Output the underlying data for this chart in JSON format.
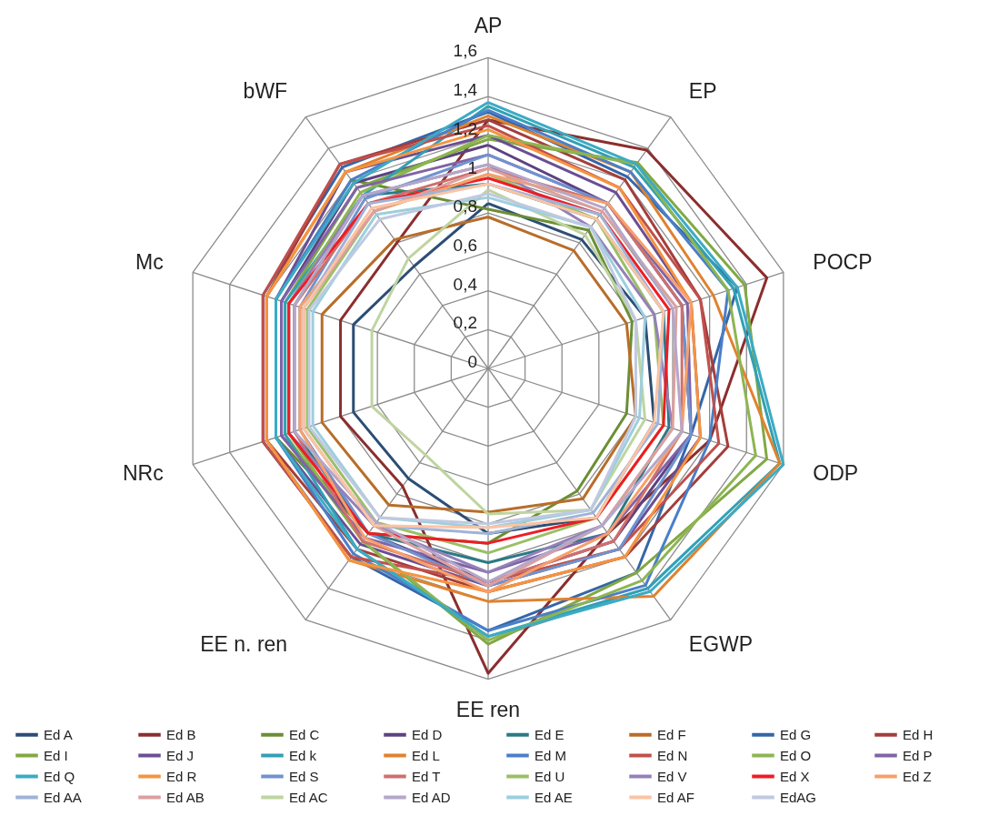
{
  "chart_data": {
    "type": "radar",
    "categories": [
      "AP",
      "EP",
      "POCP",
      "ODP",
      "EGWP",
      "EE ren",
      "EE n. ren",
      "NRc",
      "Mc",
      "bWF"
    ],
    "ylim": [
      0,
      1.6
    ],
    "yticks": [
      0,
      {
        "value": 0.2,
        "label": "0,2"
      },
      {
        "value": 0.4,
        "label": "0,4"
      },
      {
        "value": 0.6,
        "label": "0,6"
      },
      {
        "value": 0.8,
        "label": "0,8"
      },
      1,
      {
        "value": 1.2,
        "label": "1,2"
      },
      {
        "value": 1.4,
        "label": "1,4"
      },
      {
        "value": 1.6,
        "label": "1,6"
      }
    ],
    "grid": true,
    "legend": "bottom",
    "series": [
      {
        "name": "Ed A",
        "color": "#2c4d75",
        "values": [
          0.85,
          0.82,
          0.85,
          0.9,
          0.95,
          0.85,
          0.7,
          0.73,
          0.73,
          0.65
        ]
      },
      {
        "name": "Ed B",
        "color": "#8b2e2e",
        "values": [
          1.28,
          1.39,
          1.51,
          1.2,
          1.05,
          1.57,
          0.75,
          0.8,
          0.8,
          0.8
        ]
      },
      {
        "name": "Ed C",
        "color": "#6b8e35",
        "values": [
          0.82,
          0.88,
          0.78,
          0.75,
          0.78,
          0.9,
          1.05,
          1.15,
          1.15,
          1.2
        ]
      },
      {
        "name": "Ed D",
        "color": "#5c4281",
        "values": [
          1.15,
          1.05,
          1.05,
          1.1,
          1.1,
          1.1,
          1.05,
          1.12,
          1.12,
          1.18
        ]
      },
      {
        "name": "Ed E",
        "color": "#2a7a85",
        "values": [
          0.95,
          0.95,
          0.95,
          0.98,
          1.05,
          1.0,
          1.05,
          1.05,
          1.05,
          1.1
        ]
      },
      {
        "name": "Ed F",
        "color": "#b86d29",
        "values": [
          0.78,
          0.75,
          0.75,
          0.8,
          0.83,
          0.74,
          0.87,
          0.9,
          0.9,
          0.82
        ]
      },
      {
        "name": "Ed G",
        "color": "#3466a8",
        "values": [
          1.32,
          1.22,
          1.35,
          1.1,
          1.3,
          1.35,
          1.2,
          1.22,
          1.22,
          1.28
        ]
      },
      {
        "name": "Ed H",
        "color": "#a33e3b",
        "values": [
          1.28,
          1.2,
          1.15,
          1.3,
          1.2,
          1.15,
          1.15,
          1.2,
          1.2,
          1.3
        ]
      },
      {
        "name": "Ed I",
        "color": "#82a844",
        "values": [
          1.18,
          1.31,
          1.39,
          1.51,
          1.3,
          1.42,
          1.1,
          1.1,
          1.1,
          1.15
        ]
      },
      {
        "name": "Ed J",
        "color": "#6a4e95",
        "values": [
          1.2,
          1.12,
          1.1,
          1.15,
          1.15,
          1.12,
          1.12,
          1.15,
          1.15,
          1.25
        ]
      },
      {
        "name": "Ed k",
        "color": "#31a0b5",
        "values": [
          1.35,
          1.28,
          1.33,
          1.58,
          1.4,
          1.38,
          1.15,
          1.1,
          1.1,
          1.1
        ]
      },
      {
        "name": "Ed L",
        "color": "#e0822e",
        "values": [
          1.3,
          1.25,
          1.22,
          1.58,
          1.45,
          1.2,
          1.22,
          1.2,
          1.2,
          1.25
        ]
      },
      {
        "name": "Ed M",
        "color": "#4a7fc9",
        "values": [
          1.33,
          1.25,
          1.3,
          1.2,
          1.38,
          1.35,
          1.18,
          1.15,
          1.15,
          1.2
        ]
      },
      {
        "name": "Ed N",
        "color": "#c0504d",
        "values": [
          1.25,
          1.15,
          1.15,
          1.25,
          1.15,
          1.1,
          1.2,
          1.22,
          1.22,
          1.3
        ]
      },
      {
        "name": "Ed O",
        "color": "#8db552",
        "values": [
          1.2,
          1.3,
          1.3,
          1.45,
          1.35,
          1.4,
          1.1,
          1.08,
          1.08,
          1.12
        ]
      },
      {
        "name": "Ed P",
        "color": "#7f63a8",
        "values": [
          1.1,
          1.05,
          1.08,
          1.1,
          1.05,
          1.05,
          1.08,
          1.12,
          1.12,
          1.15
        ]
      },
      {
        "name": "Ed Q",
        "color": "#3cabc4",
        "values": [
          1.37,
          1.3,
          1.35,
          1.6,
          1.42,
          1.38,
          1.15,
          1.15,
          1.15,
          1.18
        ]
      },
      {
        "name": "Ed R",
        "color": "#f59440",
        "values": [
          1.23,
          1.15,
          1.1,
          1.15,
          1.2,
          1.15,
          1.22,
          1.2,
          1.2,
          1.25
        ]
      },
      {
        "name": "Ed S",
        "color": "#6f93cf",
        "values": [
          1.1,
          1.05,
          1.05,
          1.1,
          1.15,
          1.12,
          1.05,
          1.02,
          1.02,
          1.08
        ]
      },
      {
        "name": "Ed T",
        "color": "#cf6f6c",
        "values": [
          1.03,
          1.05,
          1.05,
          1.05,
          1.1,
          1.1,
          1.1,
          1.05,
          1.05,
          1.05
        ]
      },
      {
        "name": "Ed U",
        "color": "#9bbf66",
        "values": [
          1.0,
          0.95,
          0.9,
          0.95,
          0.95,
          0.95,
          0.98,
          0.98,
          0.98,
          1.0
        ]
      },
      {
        "name": "Ed V",
        "color": "#9580b8",
        "values": [
          1.05,
          0.9,
          0.9,
          1.0,
          1.0,
          1.05,
          1.0,
          1.08,
          1.08,
          1.1
        ]
      },
      {
        "name": "Ed X",
        "color": "#ee1c25",
        "values": [
          0.98,
          0.98,
          0.98,
          0.95,
          0.95,
          0.9,
          1.05,
          1.08,
          1.08,
          1.05
        ]
      },
      {
        "name": "Ed Z",
        "color": "#f7a06a",
        "values": [
          1.0,
          1.05,
          1.1,
          1.05,
          1.05,
          1.15,
          1.08,
          1.02,
          1.02,
          1.0
        ]
      },
      {
        "name": "Ed AA",
        "color": "#9fb3d8",
        "values": [
          0.95,
          0.98,
          0.95,
          0.92,
          0.92,
          0.85,
          1.0,
          1.0,
          1.0,
          1.05
        ]
      },
      {
        "name": "Ed AB",
        "color": "#dba09e",
        "values": [
          1.03,
          1.0,
          1.02,
          1.0,
          1.0,
          1.12,
          1.0,
          1.0,
          1.0,
          1.0
        ]
      },
      {
        "name": "Ed AC",
        "color": "#bfd4a0",
        "values": [
          0.92,
          0.85,
          0.8,
          0.85,
          0.9,
          0.75,
          0.55,
          0.63,
          0.63,
          0.7
        ]
      },
      {
        "name": "Ed AD",
        "color": "#b4a7c9",
        "values": [
          1.05,
          1.02,
          1.0,
          1.05,
          1.0,
          1.1,
          0.98,
          1.05,
          1.05,
          1.1
        ]
      },
      {
        "name": "Ed AE",
        "color": "#9ccfde",
        "values": [
          0.88,
          0.9,
          0.85,
          0.82,
          0.9,
          0.82,
          0.95,
          0.95,
          0.95,
          0.98
        ]
      },
      {
        "name": "Ed AF",
        "color": "#fbc4a4",
        "values": [
          0.95,
          0.95,
          0.95,
          0.9,
          0.95,
          0.82,
          1.0,
          1.0,
          1.0,
          1.02
        ]
      },
      {
        "name": "EdAG",
        "color": "#c0c9e0",
        "values": [
          0.9,
          0.9,
          0.8,
          0.8,
          0.9,
          0.8,
          0.95,
          0.97,
          0.97,
          0.95
        ]
      }
    ]
  }
}
